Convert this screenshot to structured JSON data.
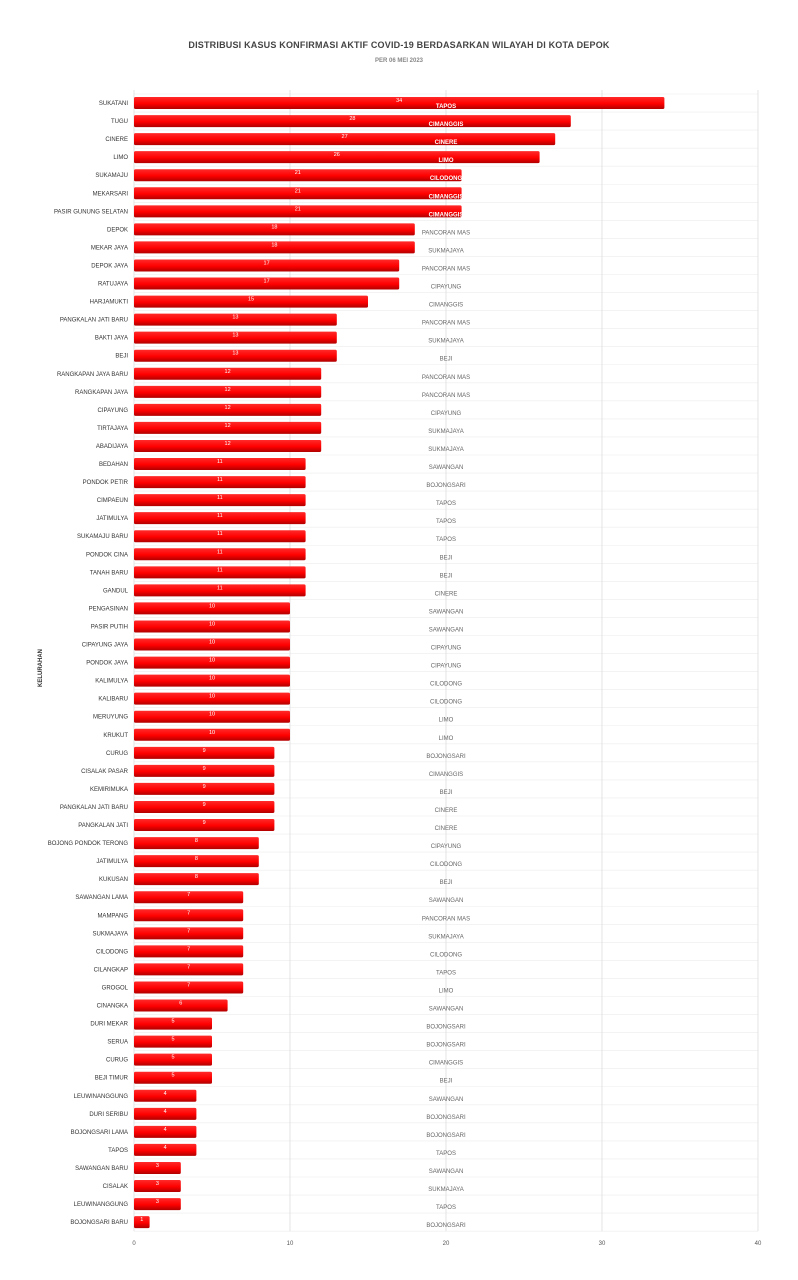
{
  "chart_data": {
    "type": "bar",
    "orientation": "horizontal",
    "title": "DISTRIBUSI KASUS KONFIRMASI AKTIF COVID-19 BERDASARKAN WILAYAH DI KOTA DEPOK",
    "subtitle": "PER 06 MEI 2023",
    "xlabel": "",
    "ylabel": "KELURAHAN",
    "xlim": [
      0,
      40
    ],
    "xticks": [
      0,
      10,
      20,
      30,
      40
    ],
    "grid": true,
    "bar_color": "#ff0000",
    "categories": [
      "SUKATANI",
      "TUGU",
      "CINERE",
      "LIMO",
      "SUKAMAJU",
      "MEKARSARI",
      "PASIR GUNUNG SELATAN",
      "DEPOK",
      "MEKAR JAYA",
      "DEPOK JAYA",
      "RATUJAYA",
      "HARJAMUKTI",
      "PANGKALAN JATI BARU",
      "BAKTI JAYA",
      "BEJI",
      "RANGKAPAN JAYA BARU",
      "RANGKAPAN JAYA",
      "CIPAYUNG",
      "TIRTAJAYA",
      "ABADIJAYA",
      "BEDAHAN",
      "PONDOK PETIR",
      "CIMPAEUN",
      "JATIMULYA",
      "SUKAMAJU BARU",
      "PONDOK CINA",
      "TANAH BARU",
      "GANDUL",
      "PENGASINAN",
      "PASIR PUTIH",
      "CIPAYUNG JAYA",
      "PONDOK JAYA",
      "KALIMULYA",
      "KALIBARU",
      "MERUYUNG",
      "KRUKUT",
      "CURUG",
      "CISALAK PASAR",
      "KEMIRIMUKA",
      "PANGKALAN JATI BARU",
      "PANGKALAN JATI",
      "BOJONG PONDOK TERONG",
      "JATIMULYA",
      "KUKUSAN",
      "SAWANGAN LAMA",
      "MAMPANG",
      "SUKMAJAYA",
      "CILODONG",
      "CILANGKAP",
      "GROGOL",
      "CINANGKA",
      "DURI MEKAR",
      "SERUA",
      "CURUG",
      "BEJI TIMUR",
      "LEUWINANGGUNG",
      "DURI SERIBU",
      "BOJONGSARI LAMA",
      "TAPOS",
      "SAWANGAN BARU",
      "CISALAK",
      "LEUWINANGGUNG",
      "BOJONGSARI BARU"
    ],
    "values": [
      34,
      28,
      27,
      26,
      21,
      21,
      21,
      18,
      18,
      17,
      17,
      15,
      13,
      13,
      13,
      12,
      12,
      12,
      12,
      12,
      11,
      11,
      11,
      11,
      11,
      11,
      11,
      11,
      10,
      10,
      10,
      10,
      10,
      10,
      10,
      10,
      9,
      9,
      9,
      9,
      9,
      8,
      8,
      8,
      7,
      7,
      7,
      7,
      7,
      7,
      6,
      5,
      5,
      5,
      5,
      4,
      4,
      4,
      4,
      3,
      3,
      3,
      1
    ],
    "kecamatan": [
      "TAPOS",
      "CIMANGGIS",
      "CINERE",
      "LIMO",
      "CILODONG",
      "CIMANGGIS",
      "CIMANGGIS",
      "PANCORAN MAS",
      "SUKMAJAYA",
      "PANCORAN MAS",
      "CIPAYUNG",
      "CIMANGGIS",
      "PANCORAN MAS",
      "SUKMAJAYA",
      "BEJI",
      "PANCORAN MAS",
      "PANCORAN MAS",
      "CIPAYUNG",
      "SUKMAJAYA",
      "SUKMAJAYA",
      "SAWANGAN",
      "BOJONGSARI",
      "TAPOS",
      "TAPOS",
      "TAPOS",
      "BEJI",
      "BEJI",
      "CINERE",
      "SAWANGAN",
      "SAWANGAN",
      "CIPAYUNG",
      "CIPAYUNG",
      "CILODONG",
      "CILODONG",
      "LIMO",
      "LIMO",
      "BOJONGSARI",
      "CIMANGGIS",
      "BEJI",
      "CINERE",
      "CINERE",
      "CIPAYUNG",
      "CILODONG",
      "BEJI",
      "SAWANGAN",
      "PANCORAN MAS",
      "SUKMAJAYA",
      "CILODONG",
      "TAPOS",
      "LIMO",
      "SAWANGAN",
      "BOJONGSARI",
      "BOJONGSARI",
      "CIMANGGIS",
      "BEJI",
      "SAWANGAN",
      "BOJONGSARI",
      "BOJONGSARI",
      "TAPOS",
      "SAWANGAN",
      "SUKMAJAYA",
      "TAPOS",
      "BOJONGSARI"
    ]
  }
}
